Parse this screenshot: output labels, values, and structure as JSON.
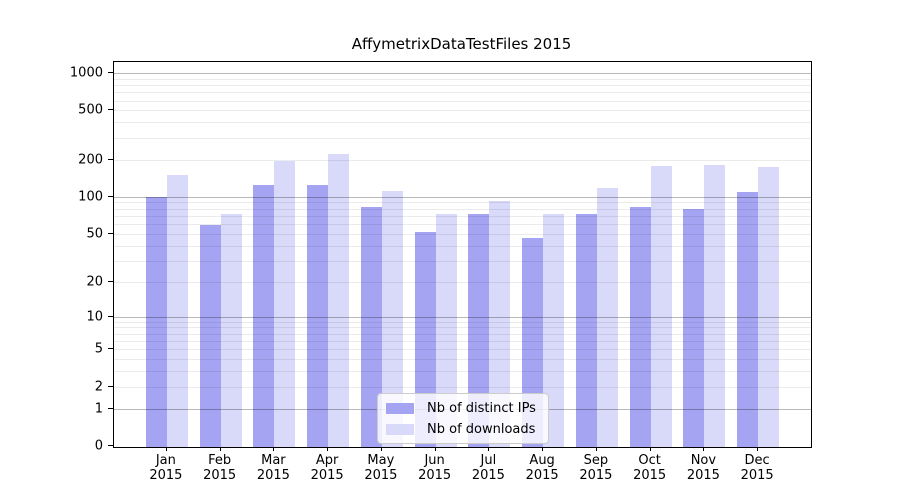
{
  "chart_data": {
    "type": "bar",
    "title": "AffymetrixDataTestFiles 2015",
    "categories": [
      "Jan",
      "Feb",
      "Mar",
      "Apr",
      "May",
      "Jun",
      "Jul",
      "Aug",
      "Sep",
      "Oct",
      "Nov",
      "Dec"
    ],
    "category_year_line": "2015",
    "series": [
      {
        "name": "Nb of distinct IPs",
        "key": "distinct-ips",
        "color": "#a4a4f2",
        "values": [
          100,
          59,
          124,
          124,
          82,
          52,
          72,
          46,
          73,
          82,
          80,
          109
        ]
      },
      {
        "name": "Nb of downloads",
        "key": "downloads",
        "color": "#d9d9f9",
        "values": [
          150,
          72,
          197,
          223,
          112,
          72,
          93,
          72,
          118,
          177,
          182,
          173
        ]
      }
    ],
    "y_scale": "log1p",
    "y_axis_tick_labels": [
      1000,
      500,
      200,
      100,
      50,
      20,
      10,
      5,
      2,
      1,
      0
    ],
    "y_major_gridlines": [
      1,
      10,
      100,
      1000
    ],
    "y_minor_gridlines": [
      2,
      3,
      4,
      5,
      6,
      7,
      8,
      9,
      20,
      30,
      40,
      50,
      60,
      70,
      80,
      90,
      200,
      300,
      400,
      500,
      600,
      700,
      800,
      900
    ],
    "ylim": [
      0,
      1275
    ],
    "grid": "both",
    "legend_position": "lower center"
  },
  "colors": {
    "background": "#ffffff",
    "axis": "#000000",
    "bar_distinct_ips": "#a4a4f2",
    "bar_downloads": "#d9d9f9",
    "grid_major": "rgba(0,0,0,0.28)",
    "grid_minor": "rgba(0,0,0,0.08)",
    "legend_border": "#cccccc",
    "legend_background": "rgba(255,255,255,0.8)",
    "text": "#000000"
  }
}
